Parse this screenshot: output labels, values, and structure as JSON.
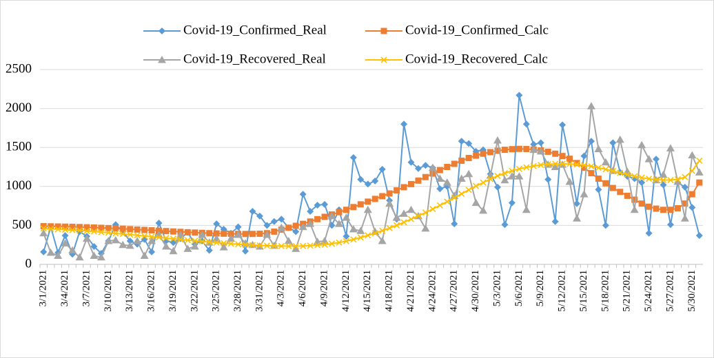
{
  "chart_data": {
    "type": "line",
    "categories": [
      "3/1/2021",
      null,
      null,
      "3/4/2021",
      null,
      null,
      "3/7/2021",
      null,
      null,
      "3/10/2021",
      null,
      null,
      "3/13/2021",
      null,
      null,
      "3/16/2021",
      null,
      null,
      "3/19/2021",
      null,
      null,
      "3/22/2021",
      null,
      null,
      "3/25/2021",
      null,
      null,
      "3/28/2021",
      null,
      null,
      "3/31/2021",
      null,
      null,
      "4/3/2021",
      null,
      null,
      "4/6/2021",
      null,
      null,
      "4/9/2021",
      null,
      null,
      "4/12/2021",
      null,
      null,
      "4/15/2021",
      null,
      null,
      "4/18/2021",
      null,
      null,
      "4/21/2021",
      null,
      null,
      "4/24/2021",
      null,
      null,
      "4/27/2021",
      null,
      null,
      "4/30/2021",
      null,
      null,
      "5/3/2021",
      null,
      null,
      "5/6/2021",
      null,
      null,
      "5/9/2021",
      null,
      null,
      "5/12/2021",
      null,
      null,
      "5/15/2021",
      null,
      null,
      "5/18/2021",
      null,
      null,
      "5/21/2021",
      null,
      null,
      "5/24/2021",
      null,
      null,
      "5/27/2021",
      null,
      null,
      "5/30/2021",
      null
    ],
    "series": [
      {
        "name": "Covid-19_Confirmed_Real",
        "color": "#5b9bd5",
        "marker": "diamond",
        "values": [
          160,
          480,
          150,
          370,
          130,
          420,
          360,
          230,
          140,
          300,
          510,
          420,
          300,
          260,
          320,
          160,
          530,
          300,
          280,
          330,
          410,
          260,
          300,
          180,
          520,
          450,
          400,
          480,
          170,
          680,
          620,
          500,
          550,
          580,
          470,
          420,
          900,
          680,
          760,
          770,
          500,
          700,
          360,
          1370,
          1090,
          1030,
          1070,
          1220,
          820,
          580,
          1800,
          1310,
          1230,
          1270,
          1240,
          970,
          1000,
          520,
          1580,
          1550,
          1450,
          1470,
          1160,
          990,
          510,
          790,
          2170,
          1800,
          1540,
          1560,
          1090,
          550,
          1790,
          1340,
          780,
          1390,
          1580,
          960,
          500,
          1560,
          1180,
          1130,
          1100,
          1050,
          400,
          1350,
          1020,
          510,
          1050,
          990,
          730,
          370
        ]
      },
      {
        "name": "Covid-19_Confirmed_Calc",
        "color": "#ed7d31",
        "marker": "square",
        "values": [
          490,
          488,
          486,
          484,
          482,
          479,
          476,
          473,
          469,
          465,
          461,
          457,
          452,
          447,
          442,
          437,
          432,
          427,
          422,
          417,
          412,
          408,
          404,
          400,
          397,
          394,
          392,
          391,
          390,
          391,
          393,
          400,
          420,
          445,
          470,
          495,
          520,
          550,
          580,
          610,
          640,
          670,
          700,
          735,
          770,
          805,
          840,
          875,
          910,
          950,
          990,
          1030,
          1075,
          1120,
          1165,
          1210,
          1250,
          1290,
          1330,
          1365,
          1395,
          1420,
          1440,
          1458,
          1470,
          1478,
          1482,
          1480,
          1474,
          1462,
          1445,
          1420,
          1390,
          1355,
          1300,
          1240,
          1170,
          1100,
          1040,
          980,
          930,
          880,
          830,
          780,
          740,
          715,
          700,
          700,
          720,
          780,
          900,
          1050
        ]
      },
      {
        "name": "Covid-19_Recovered_Real",
        "color": "#a5a5a5",
        "marker": "triangle",
        "values": [
          400,
          150,
          110,
          270,
          180,
          90,
          330,
          110,
          90,
          300,
          310,
          250,
          240,
          300,
          110,
          300,
          380,
          230,
          170,
          380,
          200,
          230,
          380,
          280,
          330,
          220,
          330,
          380,
          270,
          250,
          230,
          380,
          240,
          470,
          300,
          200,
          480,
          520,
          290,
          300,
          620,
          520,
          600,
          450,
          430,
          700,
          420,
          300,
          780,
          600,
          650,
          700,
          620,
          460,
          1240,
          1100,
          1050,
          880,
          1100,
          1160,
          790,
          690,
          1140,
          1590,
          1080,
          1130,
          1130,
          700,
          1470,
          1450,
          1280,
          1250,
          1280,
          1060,
          590,
          900,
          2030,
          1480,
          1310,
          1200,
          1600,
          1190,
          700,
          1530,
          1350,
          1080,
          1150,
          1490,
          1060,
          590,
          1400,
          1180
        ]
      },
      {
        "name": "Covid-19_Recovered_Calc",
        "color": "#ffc000",
        "marker": "x",
        "values": [
          460,
          455,
          450,
          445,
          440,
          435,
          428,
          421,
          414,
          406,
          398,
          390,
          382,
          373,
          364,
          355,
          346,
          337,
          328,
          319,
          310,
          302,
          294,
          286,
          279,
          272,
          265,
          259,
          253,
          248,
          244,
          240,
          237,
          235,
          234,
          234,
          236,
          240,
          246,
          254,
          265,
          280,
          298,
          320,
          345,
          372,
          400,
          432,
          466,
          502,
          540,
          580,
          622,
          665,
          710,
          757,
          805,
          855,
          905,
          955,
          1005,
          1050,
          1095,
          1135,
          1170,
          1200,
          1225,
          1245,
          1262,
          1275,
          1284,
          1289,
          1290,
          1288,
          1282,
          1272,
          1258,
          1240,
          1220,
          1198,
          1175,
          1152,
          1130,
          1112,
          1098,
          1088,
          1082,
          1082,
          1090,
          1120,
          1200,
          1330
        ]
      }
    ],
    "ylim": [
      0,
      2500
    ],
    "yticks": [
      0,
      500,
      1000,
      1500,
      2000,
      2500
    ],
    "grid": true,
    "legend": "top"
  }
}
